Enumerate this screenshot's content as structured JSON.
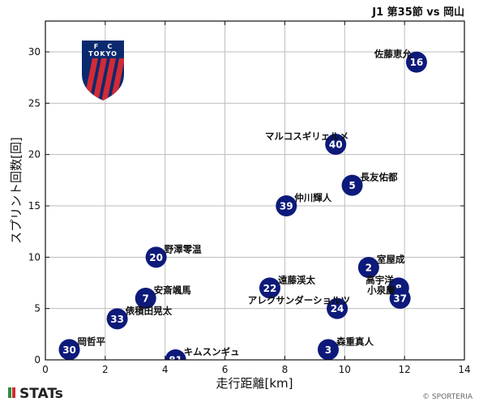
{
  "header": {
    "match_title": "J1 第35節 vs 岡山"
  },
  "footer": {
    "brand": "STATs",
    "copyright": "© SPORTERIA"
  },
  "logo": {
    "top_text": "F    C",
    "mid_text": "TOKYO",
    "colors": [
      "#0b2a6e",
      "#d32a36"
    ]
  },
  "colors": {
    "marker": "#0d1a7a",
    "marker_text": "#ffffff",
    "grid": "#bdbdbd",
    "frame": "#111111"
  },
  "chart_data": {
    "type": "scatter",
    "title": "J1 第35節 vs 岡山",
    "xlabel": "走行距離[km]",
    "ylabel": "スプリント回数[回]",
    "xlim": [
      0,
      14
    ],
    "ylim": [
      0,
      33
    ],
    "xticks": [
      0,
      2,
      4,
      6,
      8,
      10,
      12,
      14
    ],
    "yticks": [
      0,
      5,
      10,
      15,
      20,
      25,
      30
    ],
    "grid": true,
    "points": [
      {
        "number": "16",
        "name": "佐藤恵允",
        "x": 12.4,
        "y": 29
      },
      {
        "number": "40",
        "name": "マルコスギリェルメ",
        "x": 9.7,
        "y": 21
      },
      {
        "number": "5",
        "name": "長友佑都",
        "x": 10.25,
        "y": 17
      },
      {
        "number": "39",
        "name": "仲川輝人",
        "x": 8.05,
        "y": 15
      },
      {
        "number": "20",
        "name": "野澤零温",
        "x": 3.7,
        "y": 10
      },
      {
        "number": "2",
        "name": "室屋成",
        "x": 10.8,
        "y": 9
      },
      {
        "number": "8",
        "name": "高宇洋",
        "x": 11.8,
        "y": 7
      },
      {
        "number": "22",
        "name": "遠藤渓太",
        "x": 7.5,
        "y": 7
      },
      {
        "number": "7",
        "name": "安斎颯馬",
        "x": 3.35,
        "y": 6
      },
      {
        "number": "37",
        "name": "小泉慶",
        "x": 11.85,
        "y": 6
      },
      {
        "number": "24",
        "name": "アレクサンダーショルツ",
        "x": 9.75,
        "y": 5
      },
      {
        "number": "33",
        "name": "俵積田晃太",
        "x": 2.4,
        "y": 4
      },
      {
        "number": "30",
        "name": "岡哲平",
        "x": 0.8,
        "y": 1
      },
      {
        "number": "3",
        "name": "森重真人",
        "x": 9.45,
        "y": 1
      },
      {
        "number": "81",
        "name": "キムスンギュ",
        "x": 4.35,
        "y": 0
      }
    ]
  }
}
